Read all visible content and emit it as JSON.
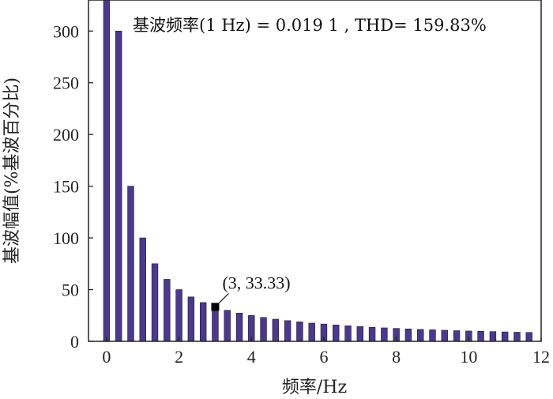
{
  "chart_data": {
    "type": "bar",
    "title": "基波频率(1 Hz) = 0.019 1 , THD= 159.83%",
    "xlabel": "频率/Hz",
    "ylabel": "基波幅值(%基波百分比)",
    "xlim": [
      -0.5,
      12
    ],
    "ylim": [
      0,
      330
    ],
    "xticks": [
      0,
      2,
      4,
      6,
      8,
      10,
      12
    ],
    "yticks": [
      0,
      50,
      100,
      150,
      200,
      250,
      300
    ],
    "bar_color": "#4b3a8a",
    "bar_width": 0.17,
    "x": [
      0,
      0.333,
      0.667,
      1.0,
      1.333,
      1.667,
      2.0,
      2.333,
      2.667,
      3.0,
      3.333,
      3.667,
      4.0,
      4.333,
      4.667,
      5.0,
      5.333,
      5.667,
      6.0,
      6.333,
      6.667,
      7.0,
      7.333,
      7.667,
      8.0,
      8.333,
      8.667,
      9.0,
      9.333,
      9.667,
      10.0,
      10.333,
      10.667,
      11.0,
      11.333,
      11.667
    ],
    "values": [
      330,
      300,
      150,
      100,
      75,
      60,
      50,
      42.9,
      37.5,
      33.33,
      30,
      27.3,
      25,
      23.1,
      21.4,
      20,
      18.8,
      17.6,
      16.7,
      15.8,
      15,
      14.3,
      13.6,
      13,
      12.5,
      12,
      11.5,
      11.1,
      10.7,
      10.3,
      10,
      9.7,
      9.4,
      9.1,
      8.8,
      8.6
    ],
    "annotation": {
      "text": "(3, 33.33)",
      "x": 3,
      "y": 33.33
    }
  }
}
